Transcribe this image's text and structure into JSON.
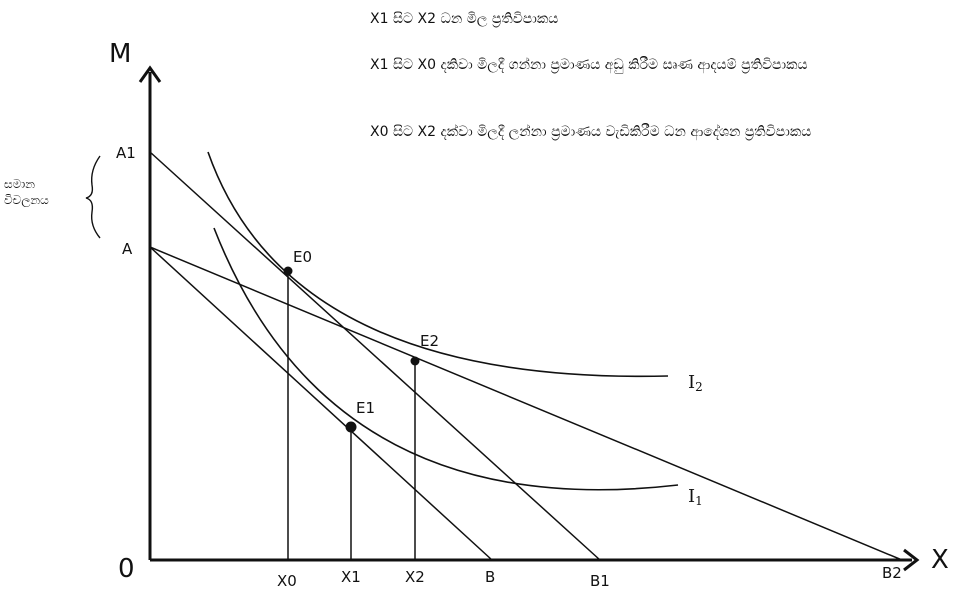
{
  "notes": [
    "X1 සිට X2 ධන මිල ප්‍රතිවිපාකය",
    "X1 සිට X0 දකිවා මිලදී ගන්නා ප්‍රමාණය අඩු කිරීම  සෘණ ආදයම් ප්‍රතිවිපාකය",
    "X0 සිට X2 දක්වා මිලදී ලන්නා ප්‍රමාණය වැඩිකිරීම ධන ආදේශන ප්‍රතිවිපාකය"
  ],
  "bracket_label": "සමාන විචලනය",
  "axes": {
    "y": "M",
    "x": "X",
    "origin": "0"
  },
  "y_ticks": [
    "A1",
    "A"
  ],
  "x_ticks": [
    "X0",
    "X1",
    "X2",
    "B",
    "B1",
    "B2"
  ],
  "points": [
    "E0",
    "E1",
    "E2"
  ],
  "curves": [
    {
      "name": "I",
      "sub": "2"
    },
    {
      "name": "I",
      "sub": "1"
    }
  ],
  "colors": {
    "ink": "#111111",
    "background": "#ffffff"
  }
}
